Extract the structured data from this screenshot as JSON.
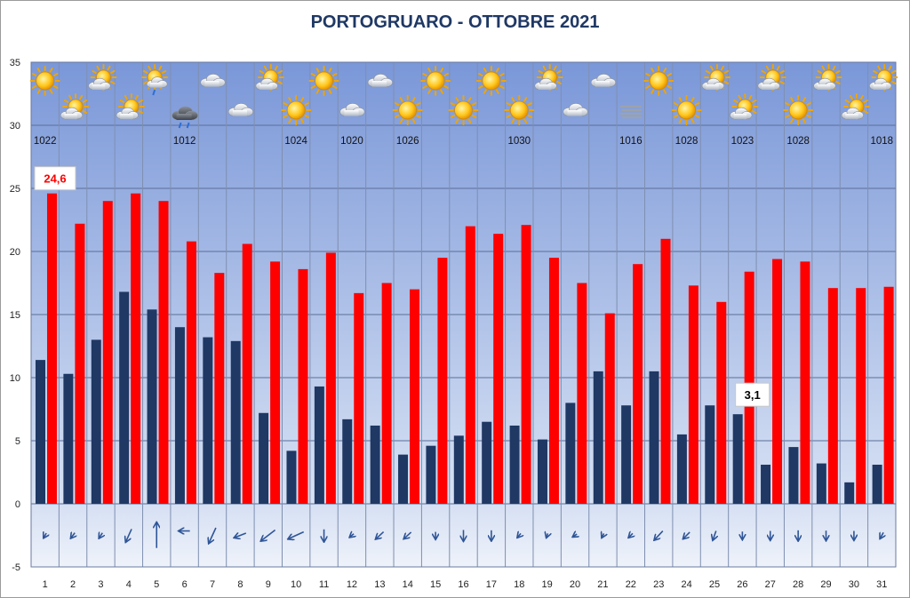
{
  "chart_data": {
    "type": "bar",
    "title": "PORTOGRUARO - OTTOBRE 2021",
    "xlabel": "",
    "ylabel": "",
    "ylim": [
      -5,
      35
    ],
    "yticks": [
      "35",
      "30",
      "25",
      "20",
      "15",
      "10",
      "5",
      "0",
      "-5"
    ],
    "grid": true,
    "colors": {
      "max": "#ff0000",
      "min": "#1f3864",
      "arrow": "#2f5597",
      "title": "#1f3864"
    },
    "categories": [
      "1",
      "2",
      "3",
      "4",
      "5",
      "6",
      "7",
      "8",
      "9",
      "10",
      "11",
      "12",
      "13",
      "14",
      "15",
      "16",
      "17",
      "18",
      "19",
      "20",
      "21",
      "22",
      "23",
      "24",
      "25",
      "26",
      "27",
      "28",
      "29",
      "30",
      "31"
    ],
    "series": [
      {
        "name": "",
        "color": "#1f3864",
        "values": [
          11.4,
          10.3,
          13.0,
          16.8,
          15.4,
          14.0,
          13.2,
          12.9,
          7.2,
          4.2,
          9.3,
          6.7,
          6.2,
          3.9,
          4.6,
          5.4,
          6.5,
          6.2,
          5.1,
          8.0,
          10.5,
          7.8,
          10.5,
          5.5,
          7.8,
          7.1,
          3.1,
          4.5,
          3.2,
          1.7,
          3.1
        ]
      },
      {
        "name": "",
        "color": "#ff0000",
        "values": [
          24.6,
          22.2,
          24.0,
          24.6,
          24.0,
          20.8,
          18.3,
          20.6,
          19.2,
          18.6,
          19.9,
          16.7,
          17.5,
          17.0,
          19.5,
          22.0,
          21.4,
          22.1,
          19.5,
          17.5,
          15.1,
          19.0,
          21.0,
          17.3,
          16.0,
          18.4,
          19.4,
          19.2,
          17.1,
          17.1,
          17.2
        ]
      }
    ],
    "data_labels": [
      {
        "day": 1,
        "text": "24,6",
        "color": "#ff0000"
      },
      {
        "day": 26,
        "text": "3,1",
        "color": "#000000"
      }
    ],
    "pressure_labels": [
      {
        "day": 1,
        "text": "1022"
      },
      {
        "day": 6,
        "text": "1012"
      },
      {
        "day": 10,
        "text": "1024"
      },
      {
        "day": 12,
        "text": "1020"
      },
      {
        "day": 14,
        "text": "1026"
      },
      {
        "day": 18,
        "text": "1030"
      },
      {
        "day": 22,
        "text": "1016"
      },
      {
        "day": 24,
        "text": "1028"
      },
      {
        "day": 26,
        "text": "1023"
      },
      {
        "day": 28,
        "text": "1028"
      },
      {
        "day": 31,
        "text": "1018"
      }
    ],
    "weather_icons": [
      "sun",
      "partly-sunny",
      "partly-sunny",
      "partly-sunny",
      "rain-sun",
      "thunder-rain",
      "cloud",
      "cloud",
      "partly-sunny",
      "sun",
      "sun",
      "cloud",
      "cloud",
      "sun",
      "sun",
      "sun",
      "sun",
      "sun",
      "partly-sunny",
      "cloud",
      "cloud",
      "fog",
      "sun",
      "sun",
      "partly-sunny",
      "partly-sunny",
      "partly-sunny",
      "sun",
      "partly-sunny",
      "partly-sunny",
      "partly-sunny"
    ],
    "wind_vectors": [
      {
        "dx": 0.2,
        "dy": -0.35
      },
      {
        "dx": 0.3,
        "dy": -0.4
      },
      {
        "dx": 0.25,
        "dy": -0.4
      },
      {
        "dx": 0.45,
        "dy": -1.0
      },
      {
        "dx": 0.0,
        "dy": 2.0
      },
      {
        "dx": 0.85,
        "dy": 0.0
      },
      {
        "dx": 0.55,
        "dy": -1.2
      },
      {
        "dx": 0.9,
        "dy": -0.35
      },
      {
        "dx": 1.1,
        "dy": -0.85
      },
      {
        "dx": 1.2,
        "dy": -0.55
      },
      {
        "dx": 0.0,
        "dy": -0.95
      },
      {
        "dx": 0.3,
        "dy": -0.25
      },
      {
        "dx": 0.6,
        "dy": -0.55
      },
      {
        "dx": 0.55,
        "dy": -0.5
      },
      {
        "dx": 0.0,
        "dy": -0.55
      },
      {
        "dx": 0.0,
        "dy": -0.85
      },
      {
        "dx": 0.0,
        "dy": -0.8
      },
      {
        "dx": 0.25,
        "dy": -0.3
      },
      {
        "dx": 0.1,
        "dy": -0.3
      },
      {
        "dx": 0.3,
        "dy": -0.2
      },
      {
        "dx": 0.15,
        "dy": -0.3
      },
      {
        "dx": 0.3,
        "dy": -0.3
      },
      {
        "dx": 0.65,
        "dy": -0.7
      },
      {
        "dx": 0.5,
        "dy": -0.5
      },
      {
        "dx": 0.25,
        "dy": -0.7
      },
      {
        "dx": 0.0,
        "dy": -0.6
      },
      {
        "dx": 0.0,
        "dy": -0.7
      },
      {
        "dx": 0.0,
        "dy": -0.8
      },
      {
        "dx": 0.0,
        "dy": -0.75
      },
      {
        "dx": 0.0,
        "dy": -0.7
      },
      {
        "dx": 0.25,
        "dy": -0.45
      }
    ]
  }
}
